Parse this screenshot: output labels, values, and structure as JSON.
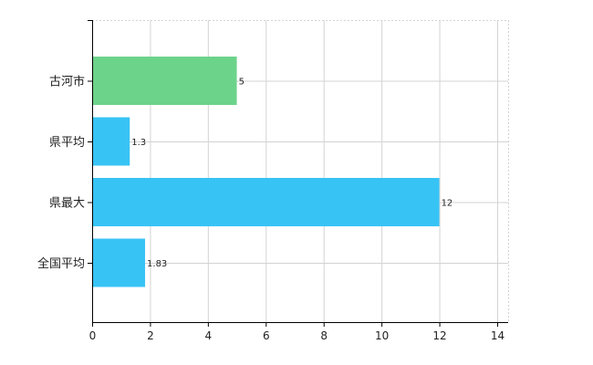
{
  "chart_data": {
    "type": "bar",
    "orientation": "horizontal",
    "title": "",
    "xlabel": "",
    "ylabel": "",
    "categories": [
      "古河市",
      "県平均",
      "県最大",
      "全国平均"
    ],
    "values": [
      5,
      1.3,
      12,
      1.83
    ],
    "value_labels": [
      "5",
      "1.3",
      "12",
      "1.83"
    ],
    "bar_colors": [
      "#6cd38a",
      "#38c3f5",
      "#38c3f5",
      "#38c3f5"
    ],
    "xlim": [
      0,
      14
    ],
    "xticks": [
      "0",
      "2",
      "4",
      "6",
      "8",
      "10",
      "12",
      "14"
    ],
    "grid": true,
    "legend": "none"
  }
}
